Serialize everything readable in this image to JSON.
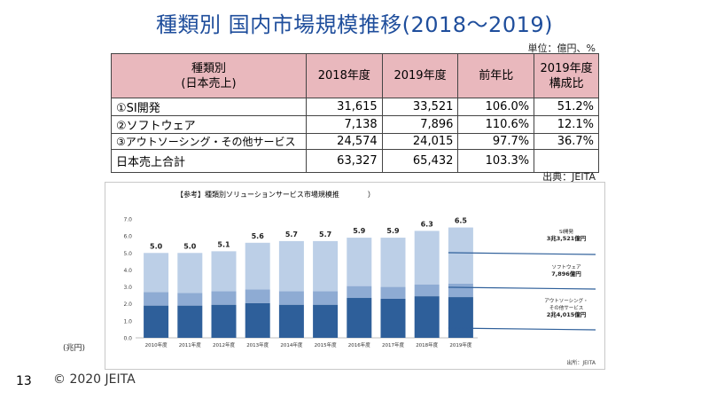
{
  "slide": {
    "title": "種類別 国内市場規模推移(2018～2019)",
    "unit": "単位：億円、%",
    "source": "出典：JEITA",
    "page_number": "13",
    "copyright": "© 2020 JEITA",
    "left_unit": "(兆円)"
  },
  "table": {
    "headers": [
      "種類別\n(日本売上)",
      "2018年度",
      "2019年度",
      "前年比",
      "2019年度\n構成比"
    ],
    "rows": [
      [
        "①SI開発",
        "31,615",
        "33,521",
        "106.0%",
        "51.2%"
      ],
      [
        "②ソフトウェア",
        "7,138",
        "7,896",
        "110.6%",
        "12.1%"
      ],
      [
        "③アウトソーシング・その他サービス",
        "24,574",
        "24,015",
        "97.7%",
        "36.7%"
      ]
    ],
    "total": [
      "日本売上合計",
      "63,327",
      "65,432",
      "103.3%",
      ""
    ]
  },
  "chart_data": {
    "type": "bar",
    "title": "【参考】種類別ソリューションサービス市場規模推　　　　）",
    "categories": [
      "2010年度",
      "2011年度",
      "2012年度",
      "2013年度",
      "2014年度",
      "2015年度",
      "2016年度",
      "2017年度",
      "2018年度",
      "2019年度"
    ],
    "series": [
      {
        "values": [
          1.9,
          1.9,
          1.95,
          2.05,
          1.95,
          1.95,
          2.35,
          2.3,
          2.45,
          2.4
        ],
        "color": "#2e5f9a"
      },
      {
        "values": [
          0.8,
          0.75,
          0.8,
          0.8,
          0.8,
          0.8,
          0.7,
          0.7,
          0.7,
          0.8
        ],
        "color": "#8eabd3"
      },
      {
        "values": [
          2.3,
          2.35,
          2.35,
          2.75,
          2.95,
          2.95,
          2.85,
          2.9,
          3.15,
          3.3
        ],
        "color": "#bccfe7"
      }
    ],
    "totals": [
      "5.0",
      "5.0",
      "5.1",
      "5.6",
      "5.7",
      "5.7",
      "5.9",
      "5.9",
      "6.3",
      "6.5"
    ],
    "ylim": [
      0,
      7
    ],
    "yticks": [
      "0.0",
      "1.0",
      "2.0",
      "3.0",
      "4.0",
      "5.0",
      "6.0",
      "7.0"
    ],
    "grid": false,
    "annotations": [
      {
        "lines": [
          "SI開発",
          "3兆3,521億円"
        ]
      },
      {
        "lines": [
          "ソフトウェア",
          "7,896億円"
        ]
      },
      {
        "lines": [
          "アウトソーシング・",
          "その他サービス",
          "2兆4,015億円"
        ]
      }
    ],
    "source": "出所：JEITA"
  }
}
